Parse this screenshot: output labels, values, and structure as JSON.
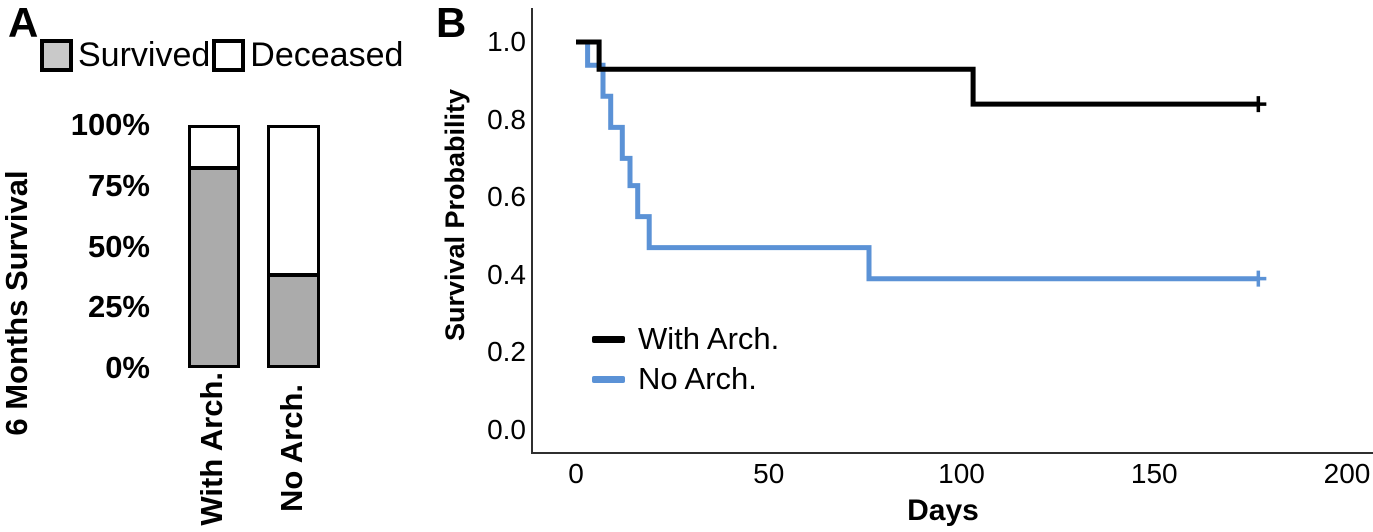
{
  "panels": {
    "a": "A",
    "b": "B"
  },
  "chart_data": [
    {
      "panel": "A",
      "type": "bar",
      "stacked": true,
      "ylabel": "6 Months Survival",
      "categories": [
        "With Arch.",
        "No Arch."
      ],
      "series": [
        {
          "name": "Survived",
          "values": [
            84,
            39
          ],
          "fill": "#ababab",
          "legend_fill": "#c9c9c9"
        },
        {
          "name": "Deceased",
          "values": [
            16,
            61
          ],
          "fill": "#ffffff",
          "legend_fill": "#ffffff"
        }
      ],
      "units": "percent",
      "ylim": [
        0,
        100
      ],
      "yticks": [
        {
          "label": "100%",
          "value": 100
        },
        {
          "label": "75%",
          "value": 75
        },
        {
          "label": "50%",
          "value": 50
        },
        {
          "label": "25%",
          "value": 25
        },
        {
          "label": "0%",
          "value": 0
        }
      ],
      "legend_position": "top",
      "bar_outline": "#000000"
    },
    {
      "panel": "B",
      "type": "line",
      "subtype": "kaplan-meier-step",
      "xlabel": "Days",
      "ylabel": "Survival Probability",
      "xticks": [
        0,
        50,
        100,
        150,
        200
      ],
      "yticks": [
        1.0,
        0.8,
        0.6,
        0.4,
        0.2,
        0.0
      ],
      "xlim": [
        0,
        207
      ],
      "ylim": [
        0,
        1.05
      ],
      "grid": false,
      "legend_position": "inside-lower-left",
      "series": [
        {
          "name": "With Arch.",
          "color": "#000000",
          "points": [
            [
              0,
              1.0
            ],
            [
              6,
              1.0
            ],
            [
              6,
              0.93
            ],
            [
              103,
              0.93
            ],
            [
              103,
              0.84
            ],
            [
              177,
              0.84
            ]
          ],
          "censor_marks": [
            [
              177,
              0.84
            ]
          ]
        },
        {
          "name": "No Arch.",
          "color": "#5b92d6",
          "points": [
            [
              0,
              1.0
            ],
            [
              3,
              1.0
            ],
            [
              3,
              0.94
            ],
            [
              7,
              0.94
            ],
            [
              7,
              0.86
            ],
            [
              9,
              0.86
            ],
            [
              9,
              0.78
            ],
            [
              12,
              0.78
            ],
            [
              12,
              0.7
            ],
            [
              14,
              0.7
            ],
            [
              14,
              0.63
            ],
            [
              16,
              0.63
            ],
            [
              16,
              0.55
            ],
            [
              19,
              0.55
            ],
            [
              19,
              0.47
            ],
            [
              76,
              0.47
            ],
            [
              76,
              0.39
            ],
            [
              177,
              0.39
            ]
          ],
          "censor_marks": [
            [
              177,
              0.39
            ]
          ]
        }
      ]
    }
  ]
}
